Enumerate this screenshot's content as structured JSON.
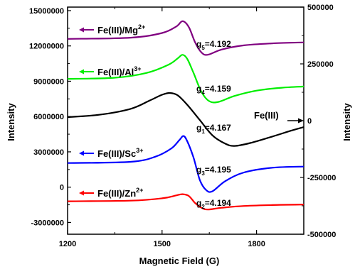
{
  "chart_data": {
    "type": "line",
    "xlabel": "Magnetic Field (G)",
    "ylabel_left": "Intensity",
    "ylabel_right": "Intensity",
    "xlim": [
      1200,
      1950
    ],
    "ylim_left": [
      -4000000,
      15300000
    ],
    "ylim_right": [
      -500000,
      500000
    ],
    "x_ticks": [
      1200,
      1500,
      1800
    ],
    "x_minor_ticks": [
      1350,
      1650
    ],
    "y_left_ticks": [
      -3000000,
      0,
      3000000,
      6000000,
      9000000,
      12000000,
      15000000
    ],
    "y_left_tick_labels": [
      "-3000000",
      "0",
      "3000000",
      "6000000",
      "9000000",
      "12000000",
      "15000000"
    ],
    "y_right_ticks": [
      -500000,
      -250000,
      0,
      250000,
      500000
    ],
    "y_right_tick_labels": [
      "-500000",
      "-250000",
      "0",
      "250000",
      "500000"
    ],
    "grid": false,
    "series": [
      {
        "name": "Fe(III)/Mg2+",
        "label_main": "Fe(III)/Mg",
        "label_sup": "2+",
        "g_sym": "g",
        "g_sub": "5",
        "g_val": "=4.192",
        "color": "#800080",
        "axis": "left",
        "baseline": 12600000,
        "amp": 1450000,
        "center": 1600,
        "width": 35,
        "tail": 0.6,
        "points": [
          [
            1200,
            12600000
          ],
          [
            1400,
            12700000
          ],
          [
            1500,
            13100000
          ],
          [
            1545,
            13650000
          ],
          [
            1565,
            14100000
          ],
          [
            1585,
            13600000
          ],
          [
            1605,
            12300000
          ],
          [
            1625,
            11450000
          ],
          [
            1645,
            11250000
          ],
          [
            1690,
            11700000
          ],
          [
            1760,
            12050000
          ],
          [
            1850,
            12220000
          ],
          [
            1950,
            12300000
          ]
        ]
      },
      {
        "name": "Fe(III)/Al3+",
        "label_main": "Fe(III)/Al",
        "label_sup": "3+",
        "g_sym": "g",
        "g_sub": "4",
        "g_val": "=4.159",
        "color": "#00ee00",
        "axis": "left",
        "points": [
          [
            1200,
            9200000
          ],
          [
            1350,
            9300000
          ],
          [
            1450,
            9700000
          ],
          [
            1520,
            10400000
          ],
          [
            1550,
            10950000
          ],
          [
            1565,
            11250000
          ],
          [
            1580,
            10900000
          ],
          [
            1600,
            9700000
          ],
          [
            1625,
            8100000
          ],
          [
            1650,
            7300000
          ],
          [
            1680,
            7250000
          ],
          [
            1730,
            7750000
          ],
          [
            1800,
            8200000
          ],
          [
            1880,
            8450000
          ],
          [
            1950,
            8550000
          ]
        ]
      },
      {
        "name": "Fe(III)",
        "label_main": "Fe(III)",
        "label_sup": "",
        "g_sym": "g",
        "g_sub": "1",
        "g_val": "=4.167",
        "color": "#000000",
        "axis": "left",
        "points": [
          [
            1200,
            5950000
          ],
          [
            1300,
            6150000
          ],
          [
            1400,
            6650000
          ],
          [
            1460,
            7350000
          ],
          [
            1500,
            7850000
          ],
          [
            1525,
            8000000
          ],
          [
            1550,
            7800000
          ],
          [
            1580,
            7000000
          ],
          [
            1620,
            5700000
          ],
          [
            1660,
            4400000
          ],
          [
            1700,
            3700000
          ],
          [
            1730,
            3500000
          ],
          [
            1780,
            3750000
          ],
          [
            1850,
            4300000
          ],
          [
            1910,
            4800000
          ],
          [
            1950,
            5100000
          ]
        ]
      },
      {
        "name": "Fe(III)/Sc3+",
        "label_main": "Fe(III)/Sc",
        "label_sup": "3+",
        "g_sym": "g",
        "g_sub": "3",
        "g_val": "=4.195",
        "color": "#0000ff",
        "axis": "left",
        "points": [
          [
            1200,
            2050000
          ],
          [
            1400,
            2150000
          ],
          [
            1480,
            2600000
          ],
          [
            1530,
            3300000
          ],
          [
            1555,
            4000000
          ],
          [
            1568,
            4350000
          ],
          [
            1580,
            3900000
          ],
          [
            1600,
            2500000
          ],
          [
            1620,
            600000
          ],
          [
            1640,
            -250000
          ],
          [
            1660,
            -350000
          ],
          [
            1700,
            500000
          ],
          [
            1760,
            1250000
          ],
          [
            1850,
            1650000
          ],
          [
            1950,
            1750000
          ]
        ]
      },
      {
        "name": "Fe(III)/Zn2+",
        "label_main": "Fe(III)/Zn",
        "label_sup": "2+",
        "g_sym": "g",
        "g_sub": "2",
        "g_val": "=4.194",
        "color": "#ff0000",
        "axis": "left",
        "points": [
          [
            1200,
            -1200000
          ],
          [
            1400,
            -1150000
          ],
          [
            1500,
            -950000
          ],
          [
            1545,
            -700000
          ],
          [
            1565,
            -600000
          ],
          [
            1585,
            -750000
          ],
          [
            1605,
            -1350000
          ],
          [
            1625,
            -1750000
          ],
          [
            1645,
            -1900000
          ],
          [
            1690,
            -1750000
          ],
          [
            1760,
            -1600000
          ],
          [
            1850,
            -1520000
          ],
          [
            1950,
            -1480000
          ]
        ]
      }
    ],
    "fe_arrow_right_value": 0
  }
}
